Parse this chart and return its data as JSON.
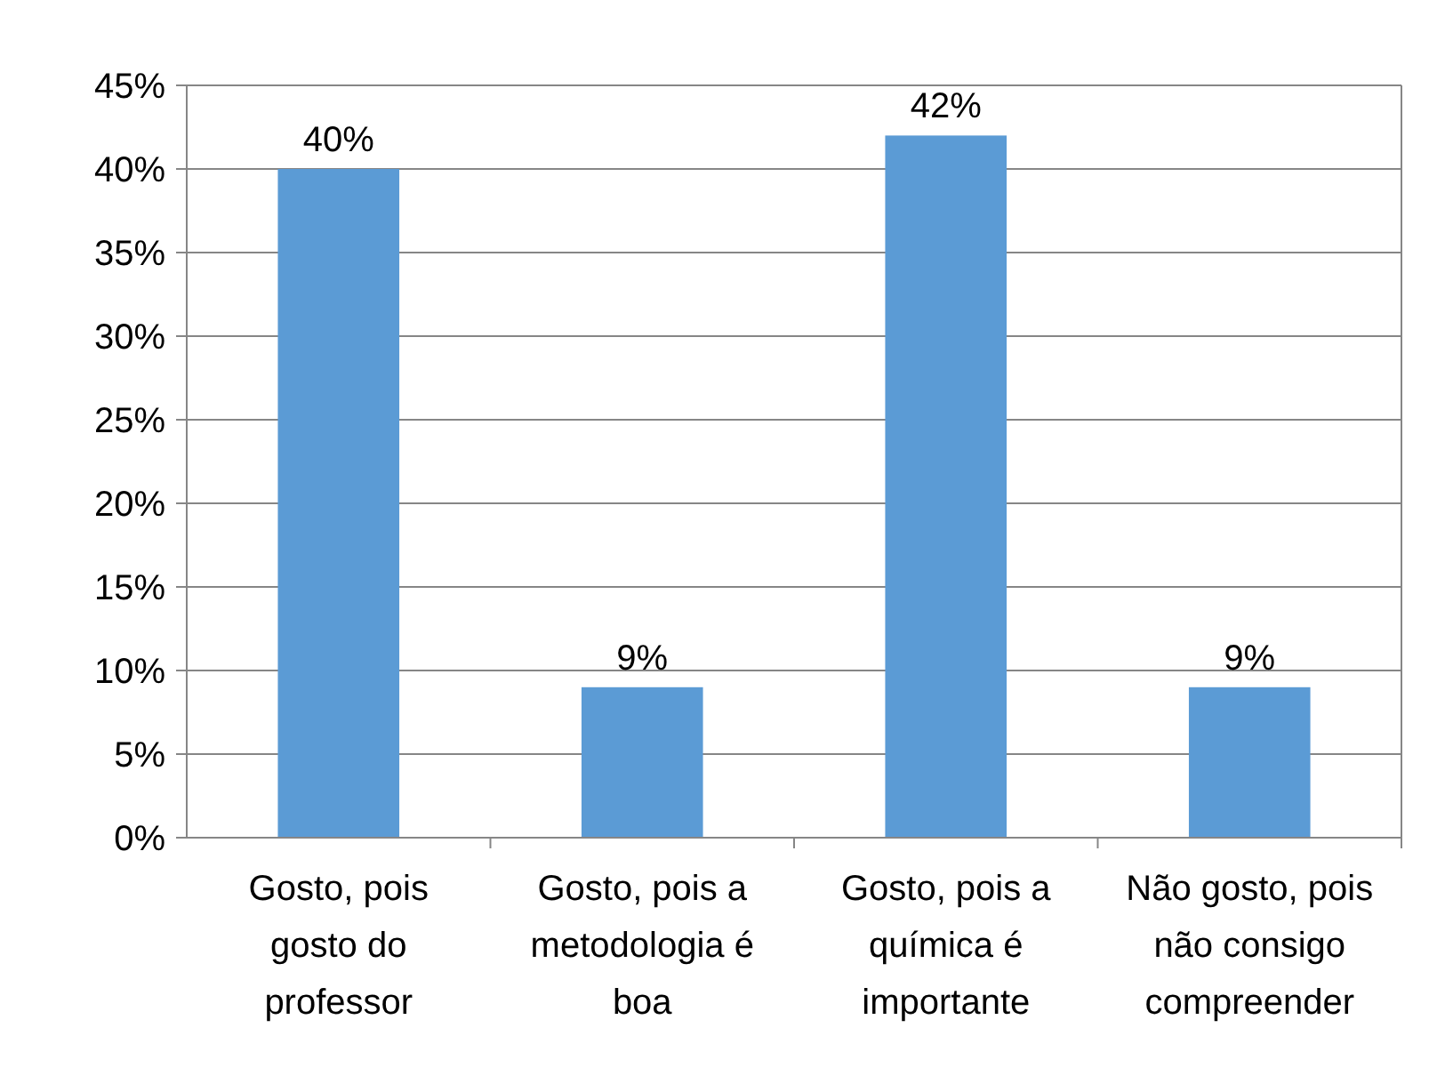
{
  "chart_data": {
    "type": "bar",
    "categories": [
      "Gosto, pois gosto do professor",
      "Gosto, pois a metodologia é boa",
      "Gosto, pois a química é importante",
      "Não gosto, pois não consigo compreender"
    ],
    "values": [
      40,
      9,
      42,
      9
    ],
    "value_labels": [
      "40%",
      "9%",
      "42%",
      "9%"
    ],
    "color": "#5b9bd5",
    "ylim": [
      0,
      45
    ],
    "yticks": [
      {
        "value": 0,
        "label": "0%"
      },
      {
        "value": 5,
        "label": "5%"
      },
      {
        "value": 10,
        "label": "10%"
      },
      {
        "value": 15,
        "label": "15%"
      },
      {
        "value": 20,
        "label": "20%"
      },
      {
        "value": 25,
        "label": "25%"
      },
      {
        "value": 30,
        "label": "30%"
      },
      {
        "value": 35,
        "label": "35%"
      },
      {
        "value": 40,
        "label": "40%"
      },
      {
        "value": 45,
        "label": "45%"
      }
    ],
    "grid": "y"
  }
}
